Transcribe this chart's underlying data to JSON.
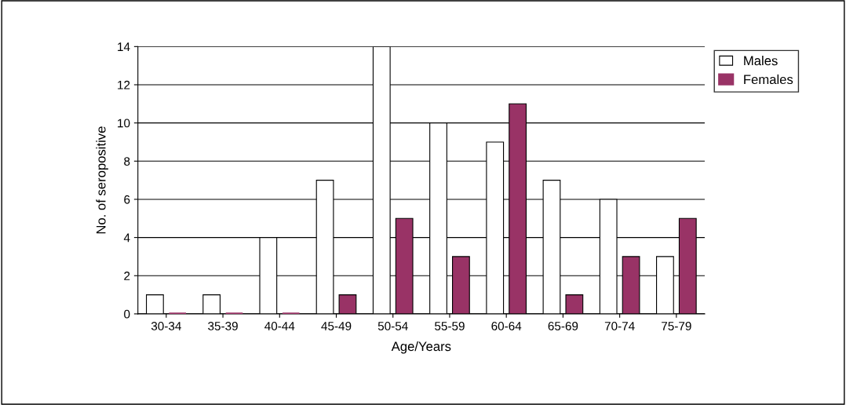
{
  "chart_data": {
    "type": "bar",
    "xlabel": "Age/Years",
    "ylabel": "No. of seropositive",
    "categories": [
      "30-34",
      "35-39",
      "40-44",
      "45-49",
      "50-54",
      "55-59",
      "60-64",
      "65-69",
      "70-74",
      "75-79"
    ],
    "series": [
      {
        "name": "Males",
        "color": "#ffffff",
        "values": [
          1,
          1,
          4,
          7,
          14,
          10,
          9,
          7,
          6,
          3
        ]
      },
      {
        "name": "Females",
        "color": "#993366",
        "values": [
          0,
          0,
          0,
          1,
          5,
          3,
          11,
          1,
          3,
          5
        ]
      }
    ],
    "ylim": [
      0,
      14
    ],
    "yticks": [
      0,
      2,
      4,
      6,
      8,
      10,
      12,
      14
    ],
    "grid": "y",
    "legend": "top right"
  }
}
